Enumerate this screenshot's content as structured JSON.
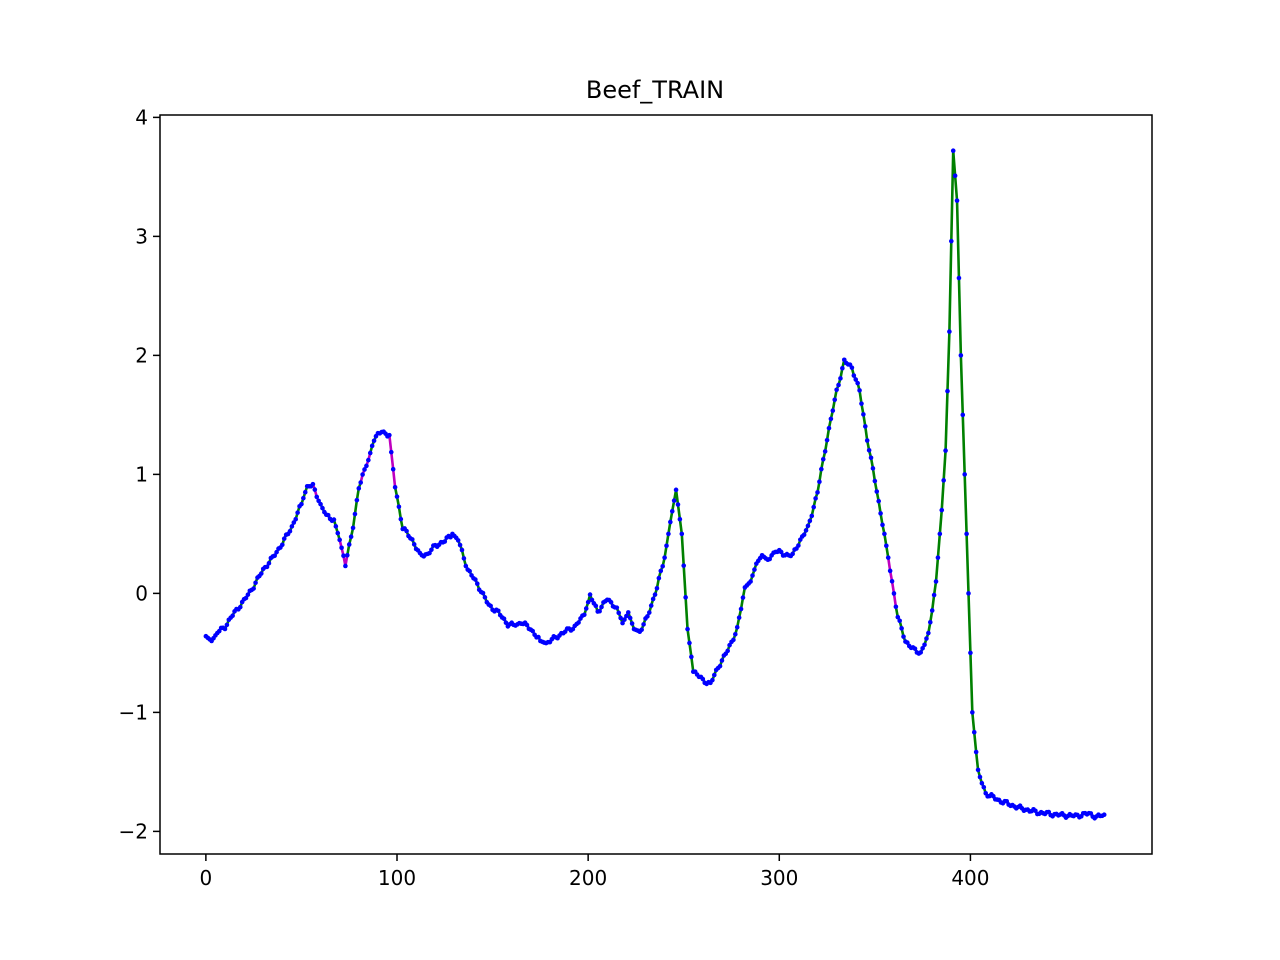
{
  "chart_data": {
    "type": "line",
    "title": "Beef_TRAIN",
    "xlabel": "",
    "ylabel": "",
    "xlim": [
      -24,
      495
    ],
    "ylim": [
      -2.19,
      4.02
    ],
    "xticks": [
      0,
      100,
      200,
      300,
      400
    ],
    "yticks": [
      4,
      3,
      2,
      1,
      0,
      -1,
      -2
    ],
    "xtick_labels": [
      "0",
      "100",
      "200",
      "300",
      "400"
    ],
    "ytick_labels": [
      "4",
      "3",
      "2",
      "1",
      "0",
      "−1",
      "−2"
    ],
    "grid": false,
    "line_color": "#008000",
    "highlight_color": "#bf00bf",
    "marker_color": "#0000ff",
    "anchors": [
      [
        0,
        -0.36
      ],
      [
        3,
        -0.4
      ],
      [
        6,
        -0.33
      ],
      [
        10,
        -0.28
      ],
      [
        15,
        -0.16
      ],
      [
        20,
        -0.06
      ],
      [
        25,
        0.06
      ],
      [
        30,
        0.2
      ],
      [
        35,
        0.3
      ],
      [
        40,
        0.42
      ],
      [
        45,
        0.56
      ],
      [
        50,
        0.75
      ],
      [
        53,
        0.9
      ],
      [
        56,
        0.9
      ],
      [
        60,
        0.75
      ],
      [
        63,
        0.65
      ],
      [
        67,
        0.62
      ],
      [
        70,
        0.45
      ],
      [
        73,
        0.25
      ],
      [
        77,
        0.55
      ],
      [
        80,
        0.9
      ],
      [
        85,
        1.12
      ],
      [
        88,
        1.3
      ],
      [
        92,
        1.36
      ],
      [
        96,
        1.33
      ],
      [
        99,
        0.9
      ],
      [
        103,
        0.55
      ],
      [
        108,
        0.45
      ],
      [
        112,
        0.32
      ],
      [
        116,
        0.33
      ],
      [
        120,
        0.4
      ],
      [
        125,
        0.44
      ],
      [
        129,
        0.5
      ],
      [
        132,
        0.45
      ],
      [
        137,
        0.2
      ],
      [
        142,
        0.08
      ],
      [
        148,
        -0.1
      ],
      [
        153,
        -0.16
      ],
      [
        158,
        -0.26
      ],
      [
        162,
        -0.27
      ],
      [
        165,
        -0.24
      ],
      [
        170,
        -0.3
      ],
      [
        175,
        -0.4
      ],
      [
        178,
        -0.42
      ],
      [
        183,
        -0.37
      ],
      [
        188,
        -0.32
      ],
      [
        193,
        -0.28
      ],
      [
        198,
        -0.18
      ],
      [
        201,
        -0.02
      ],
      [
        205,
        -0.15
      ],
      [
        210,
        -0.05
      ],
      [
        215,
        -0.12
      ],
      [
        218,
        -0.25
      ],
      [
        221,
        -0.16
      ],
      [
        224,
        -0.3
      ],
      [
        227,
        -0.32
      ],
      [
        231,
        -0.2
      ],
      [
        236,
        0.05
      ],
      [
        240,
        0.3
      ],
      [
        243,
        0.6
      ],
      [
        246,
        0.87
      ],
      [
        249,
        0.5
      ],
      [
        252,
        -0.3
      ],
      [
        255,
        -0.65
      ],
      [
        260,
        -0.73
      ],
      [
        264,
        -0.76
      ],
      [
        268,
        -0.62
      ],
      [
        273,
        -0.48
      ],
      [
        278,
        -0.3
      ],
      [
        282,
        0.05
      ],
      [
        285,
        0.1
      ],
      [
        288,
        0.25
      ],
      [
        291,
        0.32
      ],
      [
        294,
        0.28
      ],
      [
        298,
        0.36
      ],
      [
        302,
        0.33
      ],
      [
        307,
        0.32
      ],
      [
        311,
        0.45
      ],
      [
        315,
        0.55
      ],
      [
        320,
        0.85
      ],
      [
        325,
        1.3
      ],
      [
        330,
        1.7
      ],
      [
        334,
        1.95
      ],
      [
        338,
        1.9
      ],
      [
        342,
        1.7
      ],
      [
        346,
        1.3
      ],
      [
        350,
        0.95
      ],
      [
        355,
        0.5
      ],
      [
        358,
        0.2
      ],
      [
        362,
        -0.2
      ],
      [
        366,
        -0.4
      ],
      [
        370,
        -0.47
      ],
      [
        374,
        -0.5
      ],
      [
        378,
        -0.35
      ],
      [
        382,
        0.1
      ],
      [
        385,
        0.7
      ],
      [
        387,
        1.2
      ],
      [
        389,
        2.2
      ],
      [
        391,
        3.72
      ],
      [
        393,
        3.3
      ],
      [
        395,
        2.0
      ],
      [
        397,
        1.0
      ],
      [
        399,
        0.0
      ],
      [
        401,
        -1.0
      ],
      [
        404,
        -1.5
      ],
      [
        408,
        -1.68
      ],
      [
        415,
        -1.74
      ],
      [
        425,
        -1.8
      ],
      [
        435,
        -1.84
      ],
      [
        445,
        -1.86
      ],
      [
        455,
        -1.87
      ],
      [
        462,
        -1.85
      ],
      [
        466,
        -1.88
      ],
      [
        470,
        -1.86
      ]
    ],
    "highlight_ranges": [
      [
        55,
        59
      ],
      [
        70,
        74
      ],
      [
        81,
        86
      ],
      [
        96,
        99
      ],
      [
        357,
        361
      ]
    ]
  }
}
